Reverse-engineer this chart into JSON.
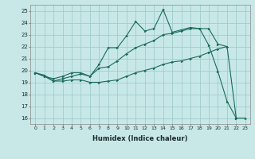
{
  "xlabel": "Humidex (Indice chaleur)",
  "bg_color": "#c8e8e8",
  "grid_color": "#a0cccc",
  "line_color": "#1a6a5a",
  "xlim": [
    -0.5,
    23.5
  ],
  "ylim": [
    15.5,
    25.5
  ],
  "yticks": [
    16,
    17,
    18,
    19,
    20,
    21,
    22,
    23,
    24,
    25
  ],
  "xticks": [
    0,
    1,
    2,
    3,
    4,
    5,
    6,
    7,
    8,
    9,
    10,
    11,
    12,
    13,
    14,
    15,
    16,
    17,
    18,
    19,
    20,
    21,
    22,
    23
  ],
  "line1_x": [
    0,
    1,
    2,
    3,
    4,
    5,
    6,
    7,
    8,
    9,
    10,
    11,
    12,
    13,
    14,
    15,
    16,
    17,
    18,
    19,
    20,
    21,
    22
  ],
  "line1_y": [
    19.8,
    19.6,
    19.1,
    19.3,
    19.5,
    19.7,
    19.5,
    20.5,
    21.9,
    21.9,
    22.9,
    24.1,
    23.3,
    23.5,
    25.1,
    23.2,
    23.4,
    23.6,
    23.5,
    22.1,
    19.9,
    17.4,
    16.0
  ],
  "line2_x": [
    0,
    1,
    2,
    3,
    4,
    5,
    6,
    7,
    8,
    9,
    10,
    11,
    12,
    13,
    14,
    15,
    16,
    17,
    18,
    19,
    20,
    21
  ],
  "line2_y": [
    19.8,
    19.5,
    19.3,
    19.5,
    19.8,
    19.8,
    19.5,
    20.2,
    20.3,
    20.8,
    21.4,
    21.9,
    22.2,
    22.5,
    23.0,
    23.1,
    23.3,
    23.5,
    23.5,
    23.5,
    22.2,
    22.0
  ],
  "line3_x": [
    0,
    1,
    2,
    3,
    4,
    5,
    6,
    7,
    8,
    9,
    10,
    11,
    12,
    13,
    14,
    15,
    16,
    17,
    18,
    19,
    20,
    21,
    22,
    23
  ],
  "line3_y": [
    19.8,
    19.5,
    19.1,
    19.1,
    19.2,
    19.2,
    19.0,
    19.0,
    19.1,
    19.2,
    19.5,
    19.8,
    20.0,
    20.2,
    20.5,
    20.7,
    20.8,
    21.0,
    21.2,
    21.5,
    21.8,
    22.0,
    16.0,
    16.0
  ]
}
